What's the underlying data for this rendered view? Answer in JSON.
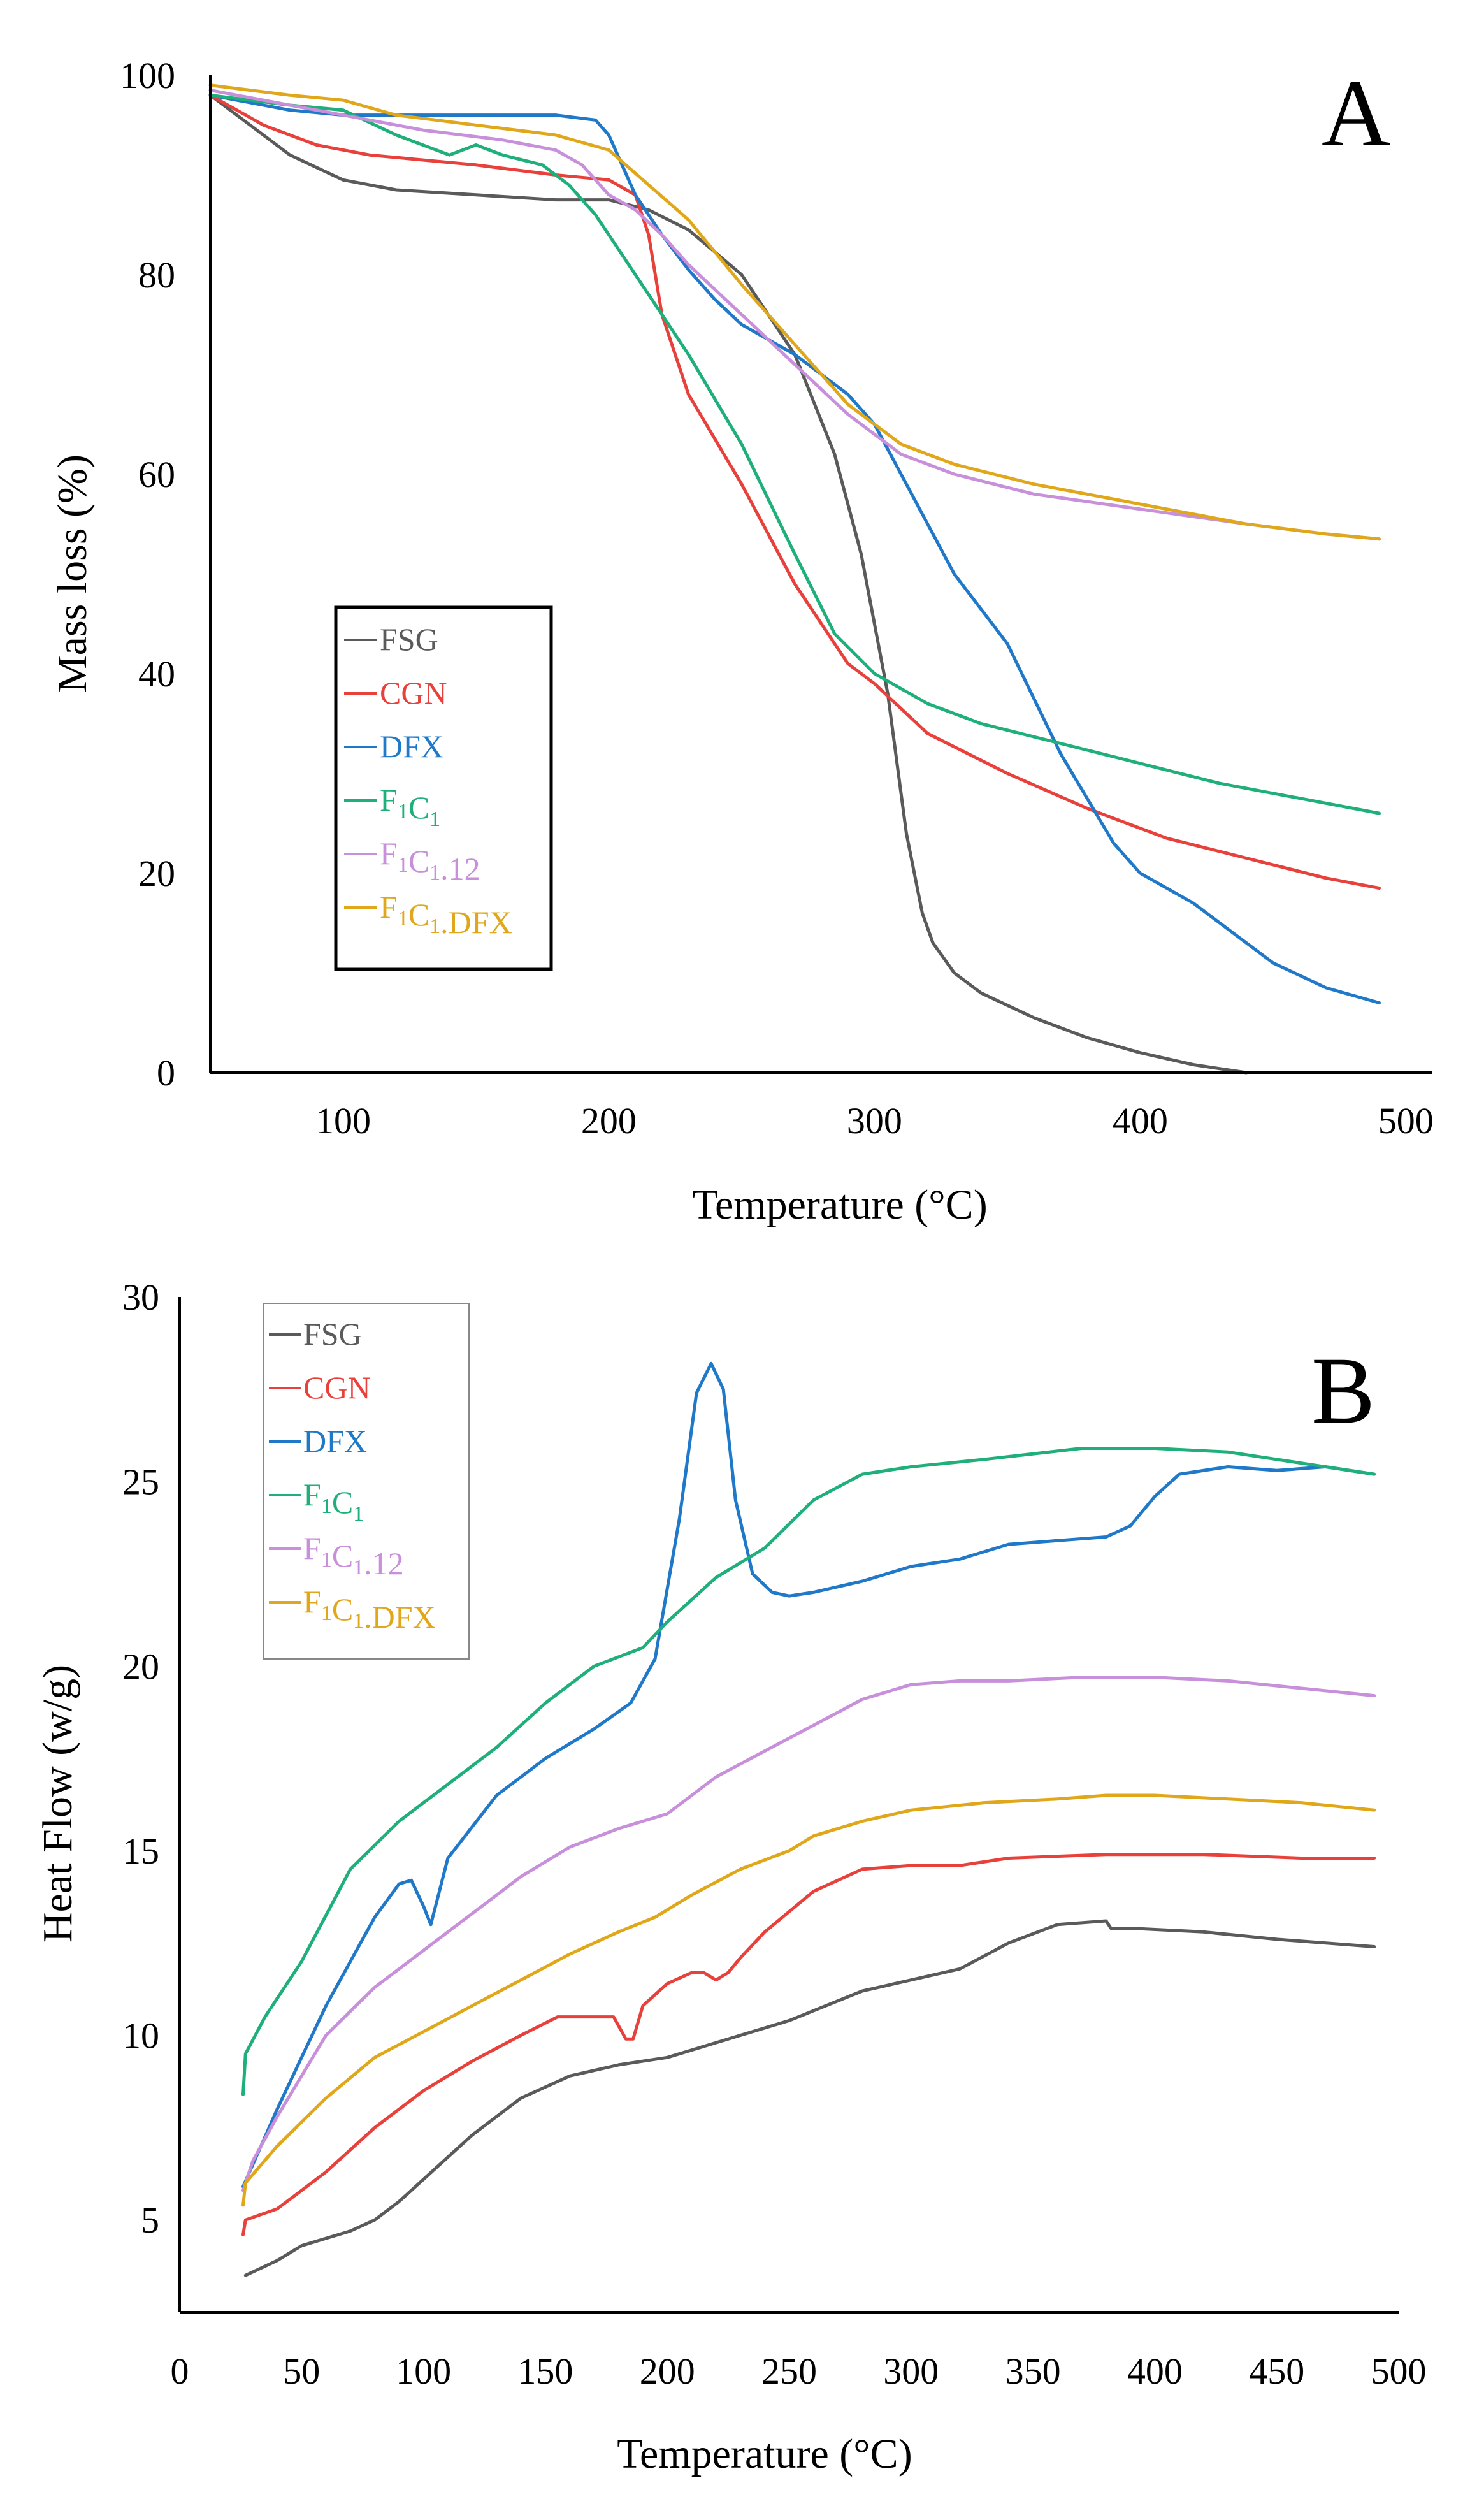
{
  "chart_data": [
    {
      "panel": "A",
      "type": "line",
      "panel_label": "A",
      "xlabel": "Temperature (°C)",
      "ylabel": "Mass loss (%)",
      "xlim": [
        50,
        510
      ],
      "ylim": [
        0,
        100
      ],
      "xticks": [
        100,
        200,
        300,
        400,
        500
      ],
      "yticks": [
        0,
        20,
        40,
        60,
        80,
        100
      ],
      "grid": false,
      "legend_position": "lower-left",
      "series": [
        {
          "name": "FSG",
          "color": "#5a5a5a",
          "x": [
            50,
            60,
            80,
            100,
            120,
            150,
            180,
            200,
            215,
            230,
            250,
            270,
            285,
            295,
            305,
            312,
            318,
            322,
            330,
            340,
            360,
            380,
            400,
            420,
            440
          ],
          "y": [
            98,
            96,
            92,
            89.5,
            88.5,
            88,
            87.5,
            87.5,
            86.5,
            84.5,
            80,
            72,
            62,
            52,
            38,
            24,
            16,
            13,
            10,
            8,
            5.5,
            3.5,
            2,
            0.8,
            0
          ]
        },
        {
          "name": "CGN",
          "color": "#e8413c",
          "x": [
            50,
            70,
            90,
            110,
            150,
            180,
            200,
            210,
            215,
            220,
            230,
            250,
            270,
            290,
            300,
            320,
            350,
            380,
            410,
            440,
            470,
            490
          ],
          "y": [
            98,
            95,
            93,
            92,
            91,
            90,
            89.5,
            88,
            84,
            76,
            68,
            59,
            49,
            41,
            39,
            34,
            30,
            26.5,
            23.5,
            21.5,
            19.5,
            18.5
          ]
        },
        {
          "name": "DFX",
          "color": "#1f78c8",
          "x": [
            50,
            80,
            100,
            150,
            180,
            195,
            200,
            210,
            220,
            230,
            240,
            250,
            270,
            290,
            300,
            310,
            330,
            350,
            370,
            390,
            400,
            420,
            450,
            470,
            490
          ],
          "y": [
            98,
            96.5,
            96,
            96,
            96,
            95.5,
            94,
            88,
            84,
            80.5,
            77.5,
            75,
            72,
            68,
            65,
            60,
            50,
            43,
            32,
            23,
            20,
            17,
            11,
            8.5,
            7
          ]
        },
        {
          "name": "F₁C₁",
          "color": "#1faf7a",
          "x": [
            50,
            80,
            100,
            120,
            140,
            150,
            160,
            175,
            185,
            195,
            205,
            215,
            230,
            250,
            270,
            285,
            300,
            320,
            340,
            370,
            400,
            430,
            460,
            490
          ],
          "y": [
            98,
            97,
            96.5,
            94,
            92,
            93,
            92,
            91,
            89,
            86,
            82,
            78,
            72,
            63,
            52,
            44,
            40,
            37,
            35,
            33,
            31,
            29,
            27.5,
            26
          ]
        },
        {
          "name": "F₁C₁.12",
          "color": "#c88fda",
          "x": [
            50,
            80,
            100,
            130,
            160,
            180,
            190,
            200,
            210,
            220,
            230,
            250,
            270,
            290,
            310,
            330,
            360,
            400,
            440,
            470,
            490
          ],
          "y": [
            98.5,
            97,
            96,
            94.5,
            93.5,
            92.5,
            91,
            88,
            86.5,
            84,
            81,
            76,
            71,
            66,
            62,
            60,
            58,
            56.5,
            55,
            54,
            53.5
          ]
        },
        {
          "name": "F₁C₁.DFX",
          "color": "#e0a71b",
          "x": [
            50,
            80,
            100,
            120,
            150,
            180,
            200,
            215,
            230,
            250,
            270,
            290,
            310,
            330,
            360,
            400,
            440,
            470,
            490
          ],
          "y": [
            99,
            98,
            97.5,
            96,
            95,
            94,
            92.5,
            89,
            85.5,
            79,
            73,
            67,
            63,
            61,
            59,
            57,
            55,
            54,
            53.5
          ]
        }
      ]
    },
    {
      "panel": "B",
      "type": "line",
      "panel_label": "B",
      "xlabel": "Temperature (°C)",
      "ylabel": "Heat Flow (w/g)",
      "xlim": [
        0,
        500
      ],
      "ylim": [
        2.5,
        30
      ],
      "xticks": [
        0,
        50,
        100,
        150,
        200,
        250,
        300,
        350,
        400,
        450,
        500
      ],
      "yticks": [
        5,
        10,
        15,
        20,
        25,
        30
      ],
      "grid": false,
      "legend_position": "top-left",
      "series": [
        {
          "name": "FSG",
          "color": "#5a5a5a",
          "x": [
            27,
            40,
            50,
            60,
            70,
            80,
            90,
            100,
            120,
            140,
            160,
            180,
            200,
            220,
            250,
            280,
            300,
            320,
            340,
            360,
            380,
            382,
            390,
            420,
            450,
            490
          ],
          "y": [
            3.5,
            3.9,
            4.3,
            4.5,
            4.7,
            5,
            5.5,
            6.1,
            7.3,
            8.3,
            8.9,
            9.2,
            9.4,
            9.8,
            10.4,
            11.2,
            11.5,
            11.8,
            12.5,
            13,
            13.1,
            12.9,
            12.9,
            12.8,
            12.6,
            12.4
          ]
        },
        {
          "name": "CGN",
          "color": "#e8413c",
          "x": [
            26,
            27,
            40,
            60,
            80,
            100,
            120,
            140,
            155,
            162,
            170,
            178,
            183,
            186,
            190,
            200,
            210,
            215,
            220,
            225,
            230,
            240,
            260,
            280,
            300,
            320,
            340,
            380,
            420,
            460,
            490
          ],
          "y": [
            4.6,
            5,
            5.3,
            6.3,
            7.5,
            8.5,
            9.3,
            10,
            10.5,
            10.5,
            10.5,
            10.5,
            9.9,
            9.9,
            10.8,
            11.4,
            11.7,
            11.7,
            11.5,
            11.7,
            12.1,
            12.8,
            13.9,
            14.5,
            14.6,
            14.6,
            14.8,
            14.9,
            14.9,
            14.8,
            14.8
          ]
        },
        {
          "name": "DFX",
          "color": "#1f78c8",
          "x": [
            26,
            40,
            60,
            80,
            90,
            95,
            100,
            103,
            110,
            130,
            150,
            170,
            185,
            195,
            205,
            212,
            218,
            223,
            228,
            235,
            243,
            250,
            260,
            280,
            300,
            320,
            340,
            360,
            380,
            390,
            400,
            410,
            430,
            450,
            470,
            490
          ],
          "y": [
            5.9,
            8,
            10.8,
            13.2,
            14.1,
            14.2,
            13.5,
            13,
            14.8,
            16.5,
            17.5,
            18.3,
            19,
            20.2,
            24,
            27.4,
            28.2,
            27.5,
            24.5,
            22.5,
            22,
            21.9,
            22,
            22.3,
            22.7,
            22.9,
            23.3,
            23.4,
            23.5,
            23.8,
            24.6,
            25.2,
            25.4,
            25.3,
            25.4,
            25.2
          ]
        },
        {
          "name": "F₁C₁",
          "color": "#1faf7a",
          "x": [
            26,
            27,
            35,
            50,
            70,
            90,
            110,
            130,
            150,
            170,
            190,
            200,
            220,
            240,
            260,
            280,
            300,
            330,
            370,
            400,
            430,
            460,
            490
          ],
          "y": [
            8.4,
            9.5,
            10.5,
            12,
            14.5,
            15.8,
            16.8,
            17.8,
            19,
            20,
            20.5,
            21.2,
            22.4,
            23.2,
            24.5,
            25.2,
            25.4,
            25.6,
            25.9,
            25.9,
            25.8,
            25.5,
            25.2
          ]
        },
        {
          "name": "F₁C₁.12",
          "color": "#c88fda",
          "x": [
            26,
            30,
            40,
            60,
            80,
            100,
            120,
            140,
            160,
            180,
            200,
            220,
            240,
            260,
            280,
            300,
            320,
            340,
            370,
            400,
            430,
            460,
            490
          ],
          "y": [
            5.8,
            6.6,
            7.8,
            10,
            11.3,
            12.3,
            13.3,
            14.3,
            15.1,
            15.6,
            16,
            17,
            17.7,
            18.4,
            19.1,
            19.5,
            19.6,
            19.6,
            19.7,
            19.7,
            19.6,
            19.4,
            19.2
          ]
        },
        {
          "name": "F₁C₁.DFX",
          "color": "#e0a71b",
          "x": [
            26,
            27,
            40,
            60,
            80,
            100,
            120,
            140,
            160,
            180,
            195,
            210,
            230,
            250,
            260,
            280,
            300,
            330,
            360,
            380,
            400,
            430,
            460,
            490
          ],
          "y": [
            5.4,
            6,
            7,
            8.3,
            9.4,
            10.1,
            10.8,
            11.5,
            12.2,
            12.8,
            13.2,
            13.8,
            14.5,
            15,
            15.4,
            15.8,
            16.1,
            16.3,
            16.4,
            16.5,
            16.5,
            16.4,
            16.3,
            16.1
          ]
        }
      ]
    }
  ]
}
